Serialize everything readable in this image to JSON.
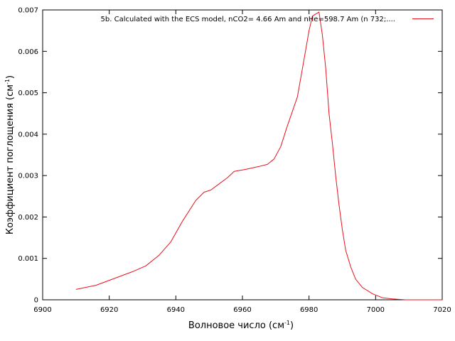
{
  "chart_data": {
    "type": "line",
    "title": "",
    "xlabel": "Волновое число (см",
    "xlabel_sup": "-1",
    "xlabel_end": ")",
    "ylabel": "Коэффициент поглощения (см",
    "ylabel_sup": "-1",
    "ylabel_end": ")",
    "xlim": [
      6900,
      7020
    ],
    "ylim": [
      0,
      0.007
    ],
    "xticks": [
      6900,
      6920,
      6940,
      6960,
      6980,
      7000,
      7020
    ],
    "yticks": [
      0,
      0.001,
      0.002,
      0.003,
      0.004,
      0.005,
      0.006,
      0.007
    ],
    "xtick_labels": [
      "6900",
      "6920",
      "6940",
      "6960",
      "6980",
      "7000",
      "7020"
    ],
    "ytick_labels": [
      "0",
      "0.001",
      "0.002",
      "0.003",
      "0.004",
      "0.005",
      "0.006",
      "0.007"
    ],
    "grid": false,
    "legend_position": "top-right",
    "series": [
      {
        "name": "5b. Calculated with the ECS model,  nCO2= 4.66 Am and nHe=598.7 Am (n  732;....",
        "color": "#e8111b",
        "x": [
          6910,
          6916,
          6921,
          6927,
          6931,
          6935,
          6938.5,
          6942,
          6946,
          6948.5,
          6950.5,
          6953,
          6955.5,
          6957.5,
          6961,
          6965,
          6967.5,
          6969.5,
          6971.5,
          6973.5,
          6976.5,
          6978.5,
          6980,
          6981,
          6982,
          6983,
          6984,
          6985,
          6986,
          6987,
          6988,
          6989,
          6990,
          6991,
          6992.5,
          6994,
          6996,
          6999,
          7002,
          7005,
          7009,
          7013,
          7020
        ],
        "y": [
          0.00025,
          0.00035,
          0.0005,
          0.00068,
          0.00082,
          0.00108,
          0.0014,
          0.0019,
          0.0024,
          0.0026,
          0.00265,
          0.0028,
          0.00295,
          0.0031,
          0.00315,
          0.00322,
          0.00327,
          0.0034,
          0.0037,
          0.0042,
          0.0049,
          0.0058,
          0.0065,
          0.00685,
          0.0069,
          0.00695,
          0.0064,
          0.0056,
          0.0045,
          0.0038,
          0.003,
          0.0023,
          0.0017,
          0.0012,
          0.0008,
          0.0005,
          0.0003,
          0.00015,
          5e-05,
          2e-05,
          0.0,
          0.0,
          0.0
        ]
      }
    ]
  }
}
